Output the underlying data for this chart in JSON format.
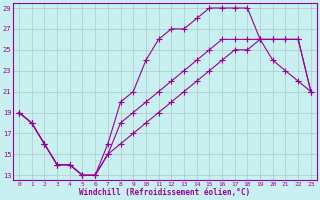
{
  "xlabel": "Windchill (Refroidissement éolien,°C)",
  "background_color": "#c8f0f0",
  "line_color": "#990099",
  "grid_color": "#b0c8c8",
  "xlim": [
    -0.5,
    23.5
  ],
  "ylim": [
    12.5,
    29.5
  ],
  "xticks": [
    0,
    1,
    2,
    3,
    4,
    5,
    6,
    7,
    8,
    9,
    10,
    11,
    12,
    13,
    14,
    15,
    16,
    17,
    18,
    19,
    20,
    21,
    22,
    23
  ],
  "yticks": [
    13,
    15,
    17,
    19,
    21,
    23,
    25,
    27,
    29
  ],
  "line1_x": [
    0,
    1,
    2,
    3,
    4,
    5,
    6,
    7,
    8,
    9,
    10,
    11,
    12,
    13,
    14,
    15,
    16,
    17,
    18,
    19,
    20,
    21,
    22,
    23
  ],
  "line1_y": [
    19,
    18,
    16,
    14,
    14,
    13,
    13,
    15,
    16,
    17,
    18,
    19,
    20,
    21,
    22,
    23,
    24,
    25,
    25,
    26,
    26,
    26,
    26,
    21
  ],
  "line2_x": [
    0,
    1,
    2,
    3,
    4,
    5,
    6,
    7,
    8,
    9,
    10,
    11,
    12,
    13,
    14,
    15,
    16,
    17,
    18,
    19,
    20,
    21,
    22,
    23
  ],
  "line2_y": [
    19,
    18,
    16,
    14,
    14,
    13,
    13,
    16,
    20,
    21,
    24,
    26,
    27,
    27,
    28,
    29,
    29,
    29,
    29,
    26,
    24,
    23,
    22,
    21
  ],
  "line3_x": [
    0,
    1,
    2,
    3,
    4,
    5,
    6,
    7,
    8,
    9,
    10,
    11,
    12,
    13,
    14,
    15,
    16,
    17,
    18,
    19,
    20,
    21,
    22,
    23
  ],
  "line3_y": [
    19,
    18,
    16,
    14,
    14,
    13,
    13,
    15,
    18,
    19,
    20,
    21,
    22,
    23,
    24,
    25,
    26,
    26,
    26,
    26,
    26,
    26,
    26,
    21
  ],
  "marker": "+",
  "markersize": 4,
  "linewidth": 0.8
}
